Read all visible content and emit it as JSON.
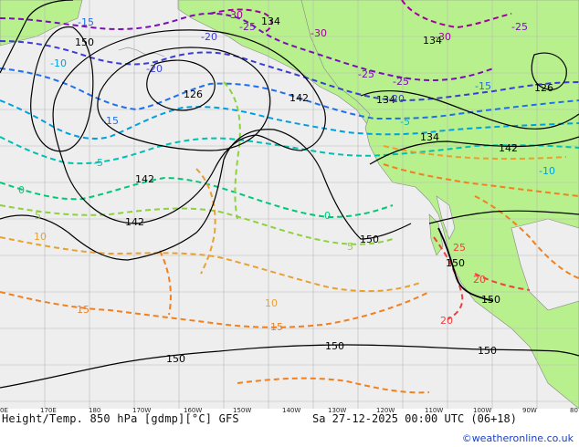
{
  "footer": {
    "title": "Height/Temp. 850 hPa [gdmp][°C] GFS",
    "time": "Sa 27-12-2025 00:00 UTC (06+18)",
    "credit": "©weatheronline.co.uk"
  },
  "longitude_labels": [
    "0E",
    "170E",
    "180",
    "170W",
    "160W",
    "150W",
    "140W",
    "130W",
    "120W",
    "110W",
    "100W",
    "90W",
    "80"
  ],
  "height_labels": [
    "150",
    "126",
    "142",
    "134",
    "134",
    "142",
    "126",
    "134",
    "142",
    "150",
    "150",
    "150",
    "150",
    "150",
    "134",
    "142",
    "150"
  ],
  "temp_labels": [
    "-15",
    "-20",
    "-30",
    "-25",
    "-30",
    "-25",
    "-25",
    "-20",
    "-15",
    "-10",
    "-5",
    "0",
    "5",
    "10",
    "15",
    "20",
    "-10",
    "-5",
    "-15",
    "-20",
    "-25",
    "-30",
    "0",
    "5",
    "10",
    "15",
    "20",
    "25"
  ],
  "colors": {
    "ocean": "#eeeeee",
    "land": "#b7f08c",
    "grid": "#b9b9b9",
    "height_contour": "#000000",
    "temp_neg30": "#a0009a",
    "temp_neg25": "#7a0fb8",
    "temp_neg20": "#3b3dd8",
    "temp_neg15": "#1e6ef0",
    "temp_neg10": "#00a0e0",
    "temp_neg5": "#00c0b0",
    "temp_0": "#00c878",
    "temp_5": "#8cd23c",
    "temp_10": "#e8a030",
    "temp_15": "#f08020",
    "temp_20": "#f04040"
  }
}
